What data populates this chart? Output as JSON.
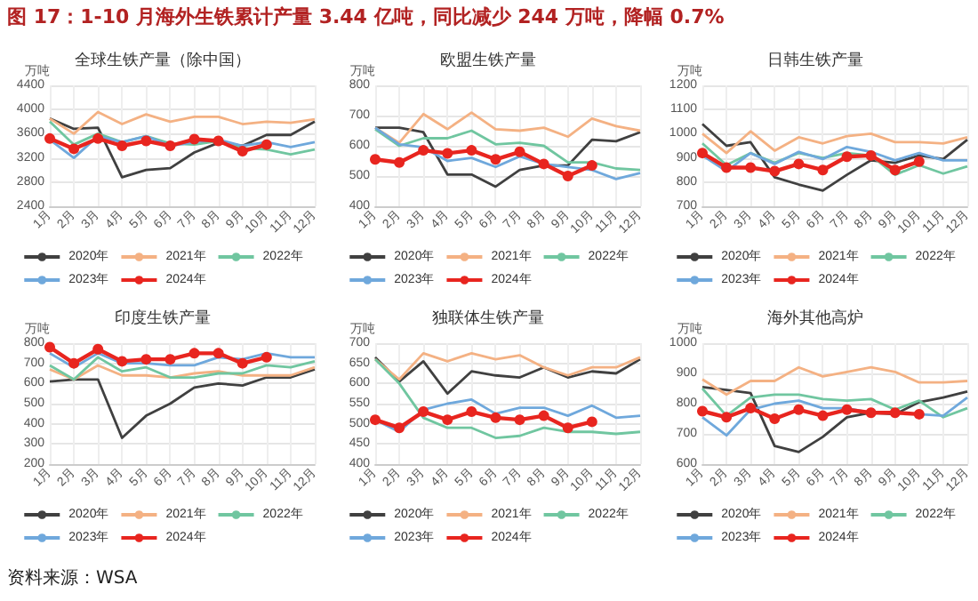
{
  "chart_data": [
    {
      "type": "other",
      "title": "图 17：1-10 月海外生铁累计产量 3.44 亿吨，同比减少 244 万吨，降幅 0.7%",
      "annotations": [
        "资料来源：WSA"
      ]
    },
    {
      "type": "line",
      "title": "全球生铁产量（除中国）",
      "ylabel": "万吨",
      "categories": [
        "1月",
        "2月",
        "3月",
        "4月",
        "5月",
        "6月",
        "7月",
        "8月",
        "9月",
        "10月",
        "11月",
        "12月"
      ],
      "ylim": [
        2400,
        4400
      ],
      "yticks": [
        2400,
        2800,
        3200,
        3600,
        4000,
        4400
      ],
      "grid": true,
      "legend": "bottom",
      "series": [
        {
          "name": "2020年",
          "color": "#404040",
          "marker": "none",
          "values": [
            3850,
            3680,
            3700,
            2880,
            3000,
            3030,
            3290,
            3450,
            3400,
            3580,
            3580,
            3800
          ]
        },
        {
          "name": "2021年",
          "color": "#f4b183",
          "marker": "none",
          "values": [
            3850,
            3600,
            3960,
            3760,
            3920,
            3800,
            3880,
            3880,
            3760,
            3800,
            3780,
            3840
          ]
        },
        {
          "name": "2022年",
          "color": "#70c6a0",
          "marker": "none",
          "values": [
            3800,
            3420,
            3600,
            3460,
            3560,
            3440,
            3420,
            3480,
            3360,
            3340,
            3260,
            3340
          ]
        },
        {
          "name": "2023年",
          "color": "#6fa8dc",
          "marker": "none",
          "values": [
            3500,
            3200,
            3560,
            3460,
            3560,
            3400,
            3460,
            3500,
            3400,
            3460,
            3380,
            3460
          ]
        },
        {
          "name": "2024年",
          "color": "#e8251f",
          "marker": "circle",
          "values": [
            3520,
            3350,
            3520,
            3400,
            3480,
            3400,
            3510,
            3480,
            3310,
            3420,
            null,
            null
          ]
        }
      ]
    },
    {
      "type": "line",
      "title": "欧盟生铁产量",
      "ylabel": "万吨",
      "categories": [
        "1月",
        "2月",
        "3月",
        "4月",
        "5月",
        "6月",
        "7月",
        "8月",
        "9月",
        "10月",
        "11月",
        "12月"
      ],
      "ylim": [
        400,
        800
      ],
      "yticks": [
        400,
        500,
        600,
        700,
        800
      ],
      "grid": true,
      "legend": "bottom",
      "series": [
        {
          "name": "2020年",
          "color": "#404040",
          "marker": "none",
          "values": [
            660,
            660,
            645,
            505,
            505,
            465,
            520,
            535,
            535,
            620,
            615,
            645
          ]
        },
        {
          "name": "2021年",
          "color": "#f4b183",
          "marker": "none",
          "values": [
            660,
            610,
            705,
            655,
            710,
            655,
            650,
            660,
            630,
            690,
            665,
            650
          ]
        },
        {
          "name": "2022年",
          "color": "#70c6a0",
          "marker": "none",
          "values": [
            655,
            600,
            625,
            625,
            650,
            605,
            610,
            600,
            545,
            545,
            525,
            520
          ]
        },
        {
          "name": "2023年",
          "color": "#6fa8dc",
          "marker": "none",
          "values": [
            660,
            605,
            595,
            550,
            560,
            530,
            565,
            540,
            530,
            520,
            490,
            510
          ]
        },
        {
          "name": "2024年",
          "color": "#e8251f",
          "marker": "circle",
          "values": [
            555,
            545,
            585,
            575,
            585,
            555,
            580,
            540,
            500,
            535,
            null,
            null
          ]
        }
      ]
    },
    {
      "type": "line",
      "title": "日韩生铁产量",
      "ylabel": "万吨",
      "categories": [
        "1月",
        "2月",
        "3月",
        "4月",
        "5月",
        "6月",
        "7月",
        "8月",
        "9月",
        "10月",
        "11月",
        "12月"
      ],
      "ylim": [
        700,
        1200
      ],
      "yticks": [
        700,
        800,
        900,
        1000,
        1100,
        1200
      ],
      "grid": true,
      "legend": "bottom",
      "series": [
        {
          "name": "2020年",
          "color": "#404040",
          "marker": "none",
          "values": [
            1040,
            950,
            965,
            820,
            790,
            765,
            830,
            890,
            880,
            910,
            895,
            975
          ]
        },
        {
          "name": "2021年",
          "color": "#f4b183",
          "marker": "none",
          "values": [
            1000,
            920,
            1010,
            930,
            985,
            960,
            990,
            1000,
            965,
            965,
            960,
            985
          ]
        },
        {
          "name": "2022年",
          "color": "#70c6a0",
          "marker": "none",
          "values": [
            960,
            870,
            920,
            880,
            920,
            900,
            920,
            910,
            830,
            870,
            835,
            865
          ]
        },
        {
          "name": "2023年",
          "color": "#6fa8dc",
          "marker": "none",
          "values": [
            910,
            845,
            920,
            875,
            925,
            895,
            945,
            925,
            890,
            920,
            890,
            890
          ]
        },
        {
          "name": "2024年",
          "color": "#e8251f",
          "marker": "circle",
          "values": [
            920,
            860,
            860,
            845,
            875,
            850,
            905,
            910,
            850,
            885,
            null,
            null
          ]
        }
      ]
    },
    {
      "type": "line",
      "title": "印度生铁产量",
      "ylabel": "万吨",
      "categories": [
        "1月",
        "2月",
        "3月",
        "4月",
        "5月",
        "6月",
        "7月",
        "8月",
        "9月",
        "10月",
        "11月",
        "12月"
      ],
      "ylim": [
        200,
        800
      ],
      "yticks": [
        200,
        300,
        400,
        500,
        600,
        700,
        800
      ],
      "grid": true,
      "legend": "bottom",
      "series": [
        {
          "name": "2020年",
          "color": "#404040",
          "marker": "none",
          "values": [
            610,
            620,
            620,
            330,
            440,
            500,
            580,
            600,
            590,
            630,
            630,
            670
          ]
        },
        {
          "name": "2021年",
          "color": "#f4b183",
          "marker": "none",
          "values": [
            670,
            620,
            690,
            640,
            640,
            630,
            650,
            660,
            640,
            640,
            640,
            680
          ]
        },
        {
          "name": "2022年",
          "color": "#70c6a0",
          "marker": "none",
          "values": [
            690,
            620,
            730,
            660,
            680,
            630,
            630,
            650,
            650,
            690,
            680,
            710
          ]
        },
        {
          "name": "2023年",
          "color": "#6fa8dc",
          "marker": "none",
          "values": [
            750,
            680,
            750,
            700,
            700,
            690,
            690,
            730,
            720,
            750,
            730,
            730
          ]
        },
        {
          "name": "2024年",
          "color": "#e8251f",
          "marker": "circle",
          "values": [
            780,
            700,
            770,
            710,
            720,
            720,
            750,
            750,
            700,
            730,
            null,
            null
          ]
        }
      ]
    },
    {
      "type": "line",
      "title": "独联体生铁产量",
      "ylabel": "万吨",
      "categories": [
        "1月",
        "2月",
        "3月",
        "4月",
        "5月",
        "6月",
        "7月",
        "8月",
        "9月",
        "10月",
        "11月",
        "12月"
      ],
      "ylim": [
        400,
        700
      ],
      "yticks": [
        400,
        450,
        500,
        550,
        600,
        650,
        700
      ],
      "grid": true,
      "legend": "bottom",
      "series": [
        {
          "name": "2020年",
          "color": "#404040",
          "marker": "none",
          "values": [
            665,
            605,
            655,
            575,
            630,
            620,
            615,
            640,
            615,
            630,
            625,
            660
          ]
        },
        {
          "name": "2021年",
          "color": "#f4b183",
          "marker": "none",
          "values": [
            660,
            610,
            675,
            655,
            675,
            660,
            670,
            640,
            620,
            640,
            640,
            665
          ]
        },
        {
          "name": "2022年",
          "color": "#70c6a0",
          "marker": "none",
          "values": [
            660,
            600,
            515,
            490,
            490,
            465,
            470,
            490,
            480,
            480,
            475,
            480
          ]
        },
        {
          "name": "2023年",
          "color": "#6fa8dc",
          "marker": "none",
          "values": [
            510,
            480,
            535,
            550,
            560,
            525,
            540,
            540,
            520,
            545,
            515,
            520
          ]
        },
        {
          "name": "2024年",
          "color": "#e8251f",
          "marker": "circle",
          "values": [
            510,
            490,
            530,
            510,
            530,
            515,
            510,
            520,
            490,
            505,
            null,
            null
          ]
        }
      ]
    },
    {
      "type": "line",
      "title": "海外其他高炉",
      "ylabel": "万吨",
      "categories": [
        "1月",
        "2月",
        "3月",
        "4月",
        "5月",
        "6月",
        "7月",
        "8月",
        "9月",
        "10月",
        "11月",
        "12月"
      ],
      "ylim": [
        600,
        1000
      ],
      "yticks": [
        600,
        700,
        800,
        900,
        1000
      ],
      "grid": true,
      "legend": "bottom",
      "series": [
        {
          "name": "2020年",
          "color": "#404040",
          "marker": "none",
          "values": [
            855,
            845,
            835,
            660,
            640,
            690,
            755,
            770,
            765,
            805,
            820,
            840
          ]
        },
        {
          "name": "2021年",
          "color": "#f4b183",
          "marker": "none",
          "values": [
            880,
            830,
            875,
            875,
            920,
            890,
            905,
            920,
            905,
            870,
            870,
            875
          ]
        },
        {
          "name": "2022年",
          "color": "#70c6a0",
          "marker": "none",
          "values": [
            850,
            760,
            820,
            830,
            830,
            815,
            810,
            815,
            780,
            810,
            755,
            785
          ]
        },
        {
          "name": "2023年",
          "color": "#6fa8dc",
          "marker": "none",
          "values": [
            755,
            695,
            780,
            800,
            810,
            785,
            785,
            770,
            770,
            765,
            760,
            820
          ]
        },
        {
          "name": "2024年",
          "color": "#e8251f",
          "marker": "circle",
          "values": [
            775,
            755,
            785,
            750,
            780,
            760,
            780,
            770,
            770,
            765,
            null,
            null
          ]
        }
      ]
    }
  ]
}
